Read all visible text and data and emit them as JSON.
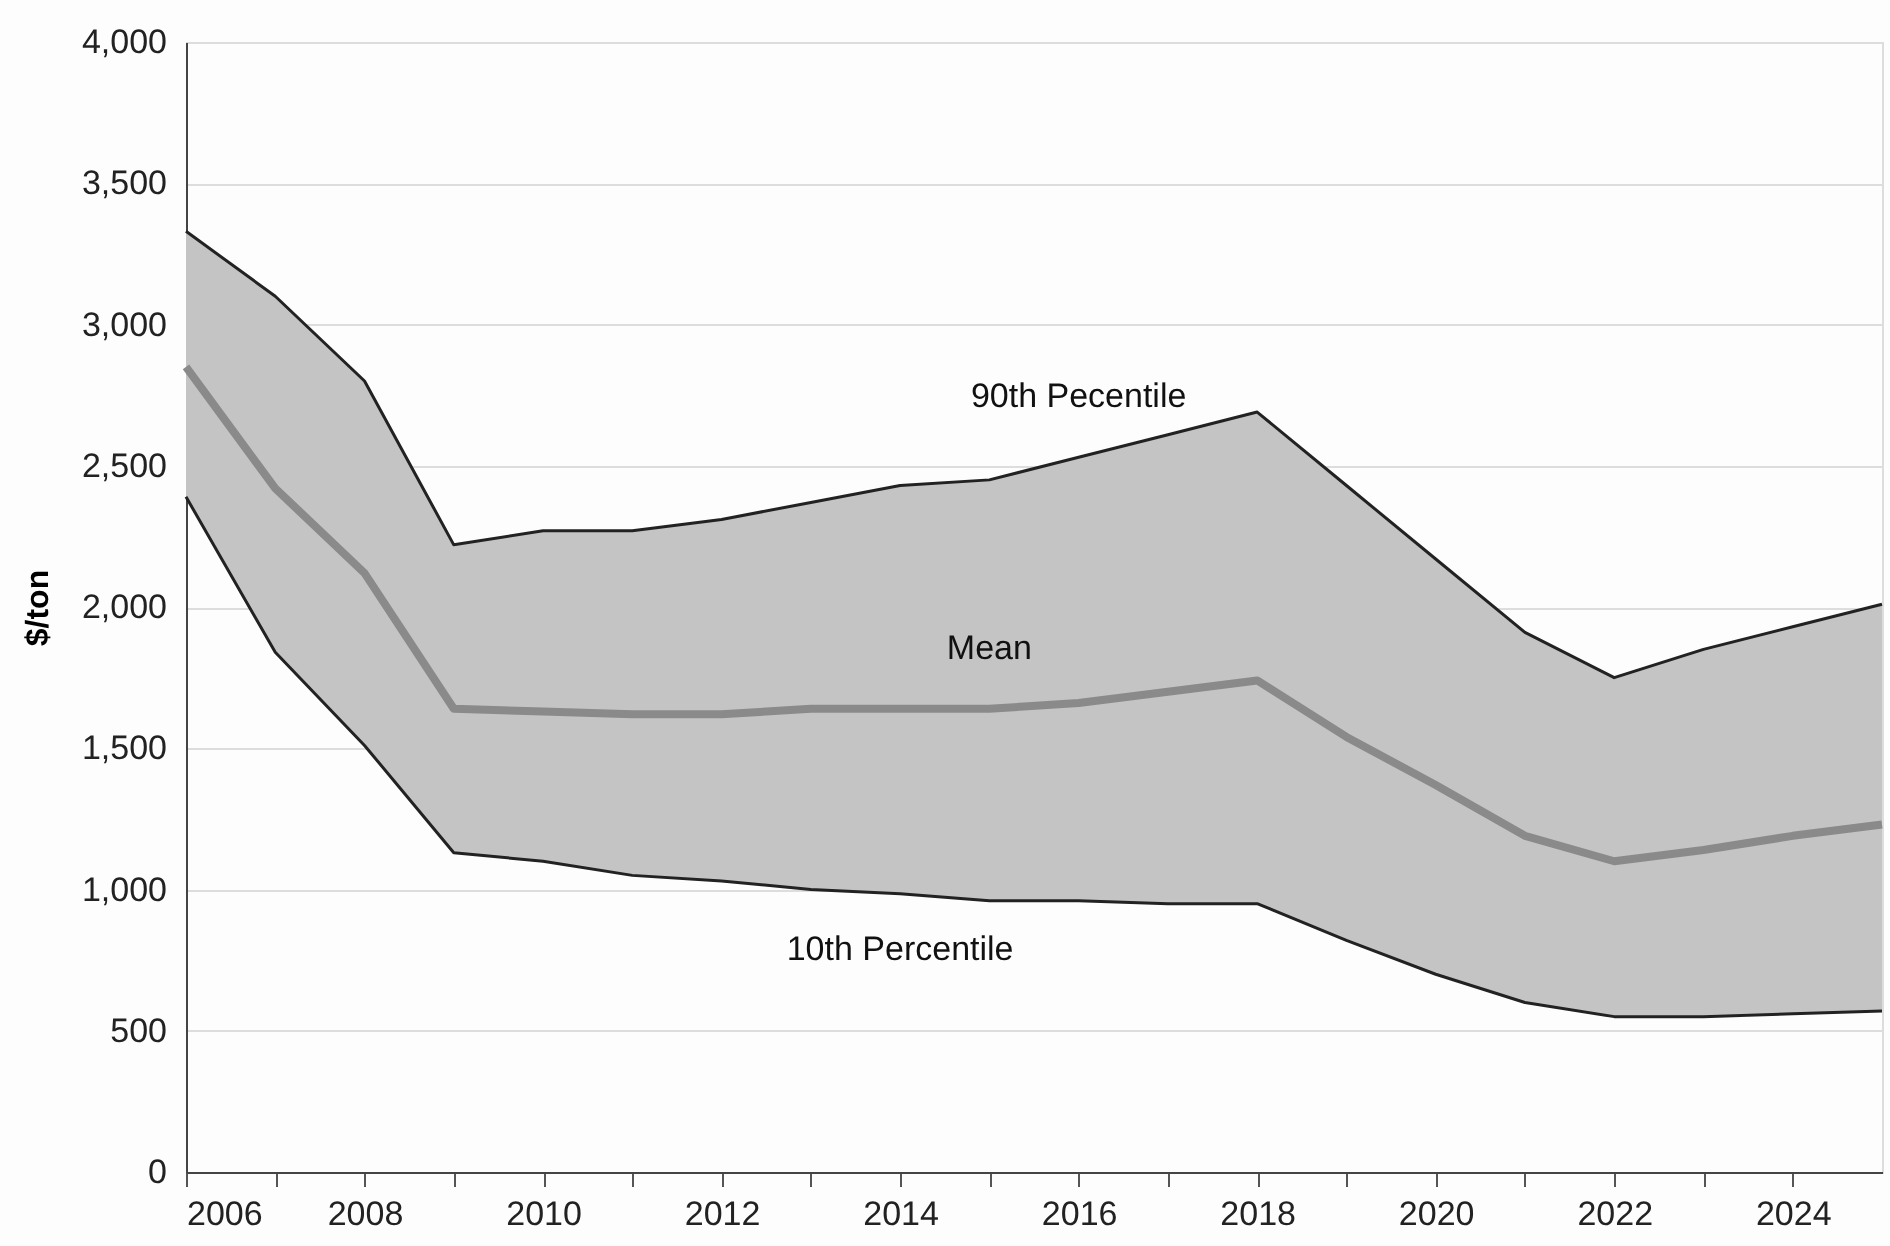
{
  "chart_data": {
    "type": "line",
    "ylabel": "$/ton",
    "x": [
      2006,
      2007,
      2008,
      2009,
      2010,
      2011,
      2012,
      2013,
      2014,
      2015,
      2016,
      2017,
      2018,
      2019,
      2020,
      2021,
      2022,
      2023,
      2024,
      2025
    ],
    "series": [
      {
        "name": "90th Pecentile",
        "color": "#222222",
        "values": [
          3330,
          3100,
          2800,
          2220,
          2270,
          2270,
          2310,
          2370,
          2430,
          2450,
          2530,
          2610,
          2690,
          2430,
          2170,
          1910,
          1750,
          1850,
          1930,
          2010
        ]
      },
      {
        "name": "Mean",
        "color": "#8a8a8a",
        "values": [
          2850,
          2420,
          2120,
          1640,
          1630,
          1620,
          1620,
          1640,
          1640,
          1640,
          1660,
          1700,
          1740,
          1540,
          1370,
          1190,
          1100,
          1140,
          1190,
          1230
        ],
        "lower": [
          2390,
          1840,
          1510,
          1130,
          1100,
          1050,
          1030,
          1000,
          985,
          960,
          960,
          950,
          950,
          820,
          700,
          600,
          550,
          550,
          560,
          570
        ],
        "upper": [
          3330,
          3100,
          2800,
          2220,
          2270,
          2270,
          2310,
          2370,
          2430,
          2450,
          2530,
          2610,
          2690,
          2430,
          2170,
          1910,
          1750,
          1850,
          1930,
          2010
        ]
      },
      {
        "name": "10th Percentile",
        "color": "#222222",
        "values": [
          2390,
          1840,
          1510,
          1130,
          1100,
          1050,
          1030,
          1000,
          985,
          960,
          960,
          950,
          950,
          820,
          700,
          600,
          550,
          550,
          560,
          570
        ]
      }
    ],
    "xlim": [
      2006,
      2025
    ],
    "xticks": [
      2006,
      {
        "value": 2007,
        "label": null
      },
      2008,
      {
        "value": 2009,
        "label": null
      },
      2010,
      {
        "value": 2011,
        "label": null
      },
      2012,
      {
        "value": 2013,
        "label": null
      },
      2014,
      {
        "value": 2015,
        "label": null
      },
      2016,
      {
        "value": 2017,
        "label": null
      },
      2018,
      {
        "value": 2019,
        "label": null
      },
      2020,
      {
        "value": 2021,
        "label": null
      },
      2022,
      {
        "value": 2023,
        "label": null
      },
      2024
    ],
    "ylim": [
      0,
      4000
    ],
    "yticks": [
      0,
      500,
      {
        "value": 1000,
        "label": "1,000"
      },
      {
        "value": 1500,
        "label": "1,500"
      },
      {
        "value": 2000,
        "label": "2,000"
      },
      {
        "value": 2500,
        "label": "2,500"
      },
      {
        "value": 3000,
        "label": "3,000"
      },
      {
        "value": 3500,
        "label": "3,500"
      },
      {
        "value": 4000,
        "label": "4,000"
      }
    ],
    "grid": "y",
    "line_style": "solid",
    "marker": "none"
  }
}
